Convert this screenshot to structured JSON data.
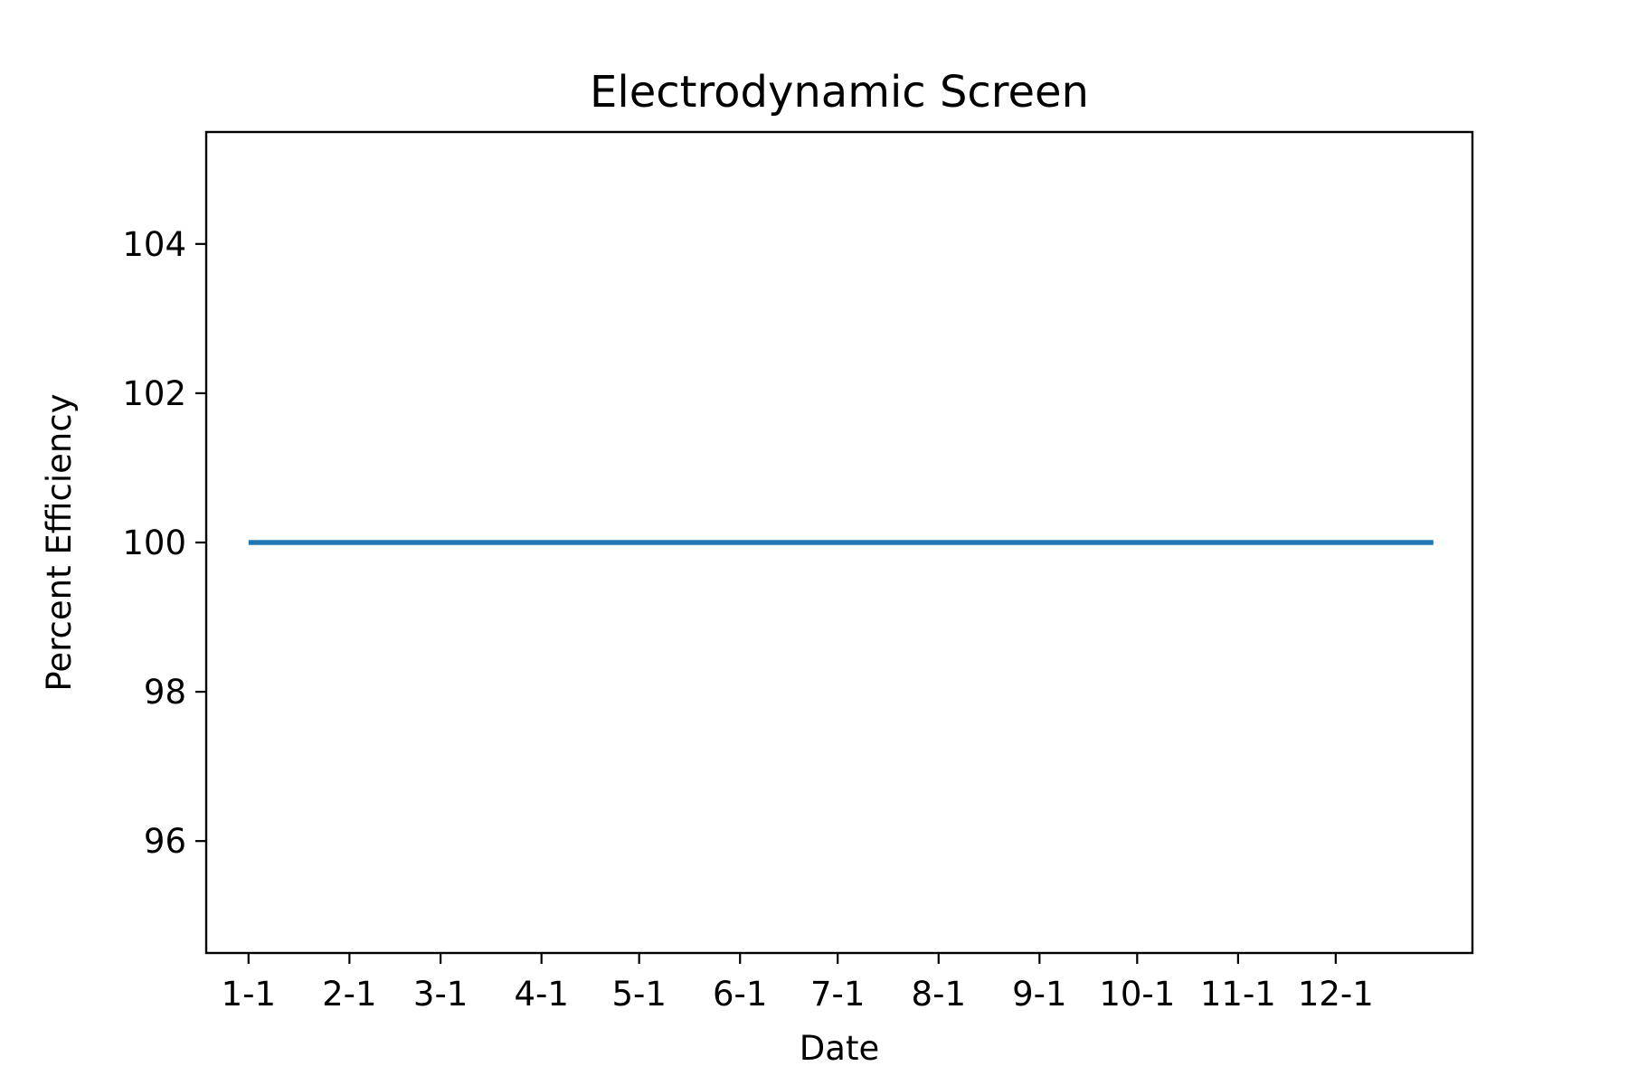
{
  "chart_data": {
    "type": "line",
    "title": "Electrodynamic Screen",
    "xlabel": "Date",
    "ylabel": "Percent Efficiency",
    "x_tick_labels": [
      "1-1",
      "2-1",
      "3-1",
      "4-1",
      "5-1",
      "6-1",
      "7-1",
      "8-1",
      "9-1",
      "10-1",
      "11-1",
      "12-1"
    ],
    "x": [
      "2023-01-01",
      "2023-02-01",
      "2023-03-01",
      "2023-04-01",
      "2023-05-01",
      "2023-06-01",
      "2023-07-01",
      "2023-08-01",
      "2023-09-01",
      "2023-10-01",
      "2023-11-01",
      "2023-12-01",
      "2023-12-31"
    ],
    "series": [
      {
        "values": [
          100,
          100,
          100,
          100,
          100,
          100,
          100,
          100,
          100,
          100,
          100,
          100,
          100
        ],
        "color": "#1f77b4"
      }
    ],
    "xlim": [
      "2022-12-19",
      "2024-01-12"
    ],
    "ylim": [
      94.5,
      105.5
    ],
    "y_ticks": [
      96,
      98,
      100,
      102,
      104
    ],
    "grid": false,
    "legend": "none"
  }
}
